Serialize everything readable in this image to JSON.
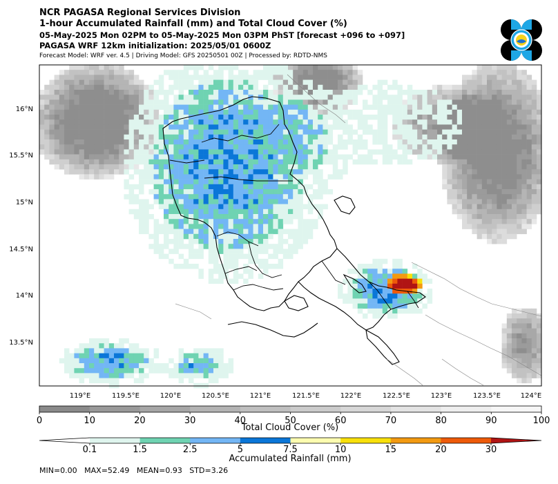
{
  "header": {
    "line1": "NCR PAGASA Regional Services Division",
    "line2": "1-hour Accumulated Rainfall (mm) and Total Cloud Cover (%)",
    "line3": "05-May-2025 Mon 02PM to 05-May-2025 Mon 03PM PhST [forecast +096 to +097]",
    "line4": "PAGASA WRF 12km initialization: 2025/05/01 0600Z",
    "line5": "Forecast Model: WRF ver. 4.5 | Driving Model: GFS 20250501 00Z | Processed by: RDTD-NMS"
  },
  "map": {
    "lon_ticks": [
      "119°E",
      "119.5°E",
      "120°E",
      "120.5°E",
      "121°E",
      "121.5°E",
      "122°E",
      "122.5°E",
      "123°E",
      "123.5°E",
      "124°E"
    ],
    "lat_ticks": [
      "16°N",
      "15.5°N",
      "15°N",
      "14.5°N",
      "14°N",
      "13.5°N"
    ]
  },
  "cloud_colorbar": {
    "label": "Total Cloud Cover (%)",
    "ticks": [
      "0",
      "10",
      "20",
      "30",
      "40",
      "50",
      "60",
      "70",
      "80",
      "90",
      "100"
    ],
    "colors": [
      "#8a8a8a",
      "#999999",
      "#a6a6a6",
      "#b3b3b3",
      "#bfbfbf",
      "#cbcbcb",
      "#d7d7d7",
      "#e3e3e3",
      "#eeeeee",
      "#f6f6f6"
    ]
  },
  "rain_colorbar": {
    "label": "Accumulated Rainfall (mm)",
    "ticks": [
      "0.1",
      "1.5",
      "2.5",
      "5",
      "7.5",
      "10",
      "15",
      "20",
      "30"
    ],
    "colors": [
      "#ffffff",
      "#dff5ee",
      "#6fd3b2",
      "#73b6f5",
      "#0a76d8",
      "#fdfdb0",
      "#f8e00a",
      "#f39a11",
      "#ee5a09",
      "#b01414"
    ]
  },
  "stats": {
    "text": "MIN=0.00   MAX=52.49   MEAN=0.93   STD=3.26"
  }
}
